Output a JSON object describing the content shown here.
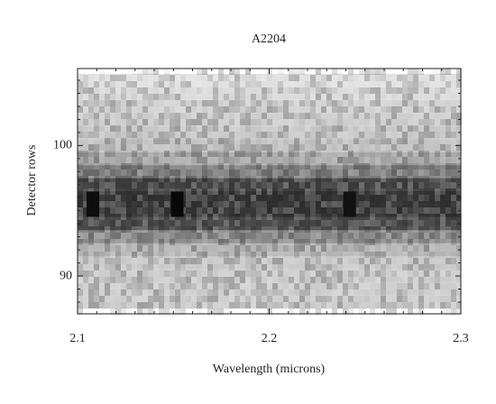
{
  "chart_data": {
    "type": "heatmap",
    "title": "A2204",
    "x_label": "Wavelength (microns)",
    "y_label": "Detector rows",
    "xlim": [
      2.1,
      2.3
    ],
    "ylim": [
      87.1,
      105.9
    ],
    "xticks": [
      2.1,
      2.2,
      2.3
    ],
    "yticks": [
      90,
      100
    ],
    "xminorticks": [
      2.11,
      2.12,
      2.13,
      2.14,
      2.15,
      2.16,
      2.17,
      2.18,
      2.19,
      2.21,
      2.22,
      2.23,
      2.24,
      2.25,
      2.26,
      2.27,
      2.28,
      2.29
    ],
    "yminorticks": [
      88,
      89,
      91,
      92,
      93,
      94,
      95,
      96,
      97,
      98,
      99,
      101,
      102,
      103,
      104,
      105
    ],
    "rows": [
      88,
      89,
      90,
      91,
      92,
      93,
      94,
      95,
      96,
      97,
      98,
      99,
      100,
      101,
      102,
      103,
      104,
      105
    ],
    "row_darkness": [
      0.2,
      0.2,
      0.2,
      0.22,
      0.3,
      0.45,
      0.7,
      0.78,
      0.78,
      0.72,
      0.5,
      0.35,
      0.25,
      0.22,
      0.2,
      0.18,
      0.15,
      0.12
    ],
    "peaks": {
      "x": [
        2.108,
        2.152,
        2.242
      ],
      "y": [
        95.5,
        95.5,
        95.5
      ],
      "z": [
        0.95,
        0.97,
        0.93
      ]
    }
  }
}
